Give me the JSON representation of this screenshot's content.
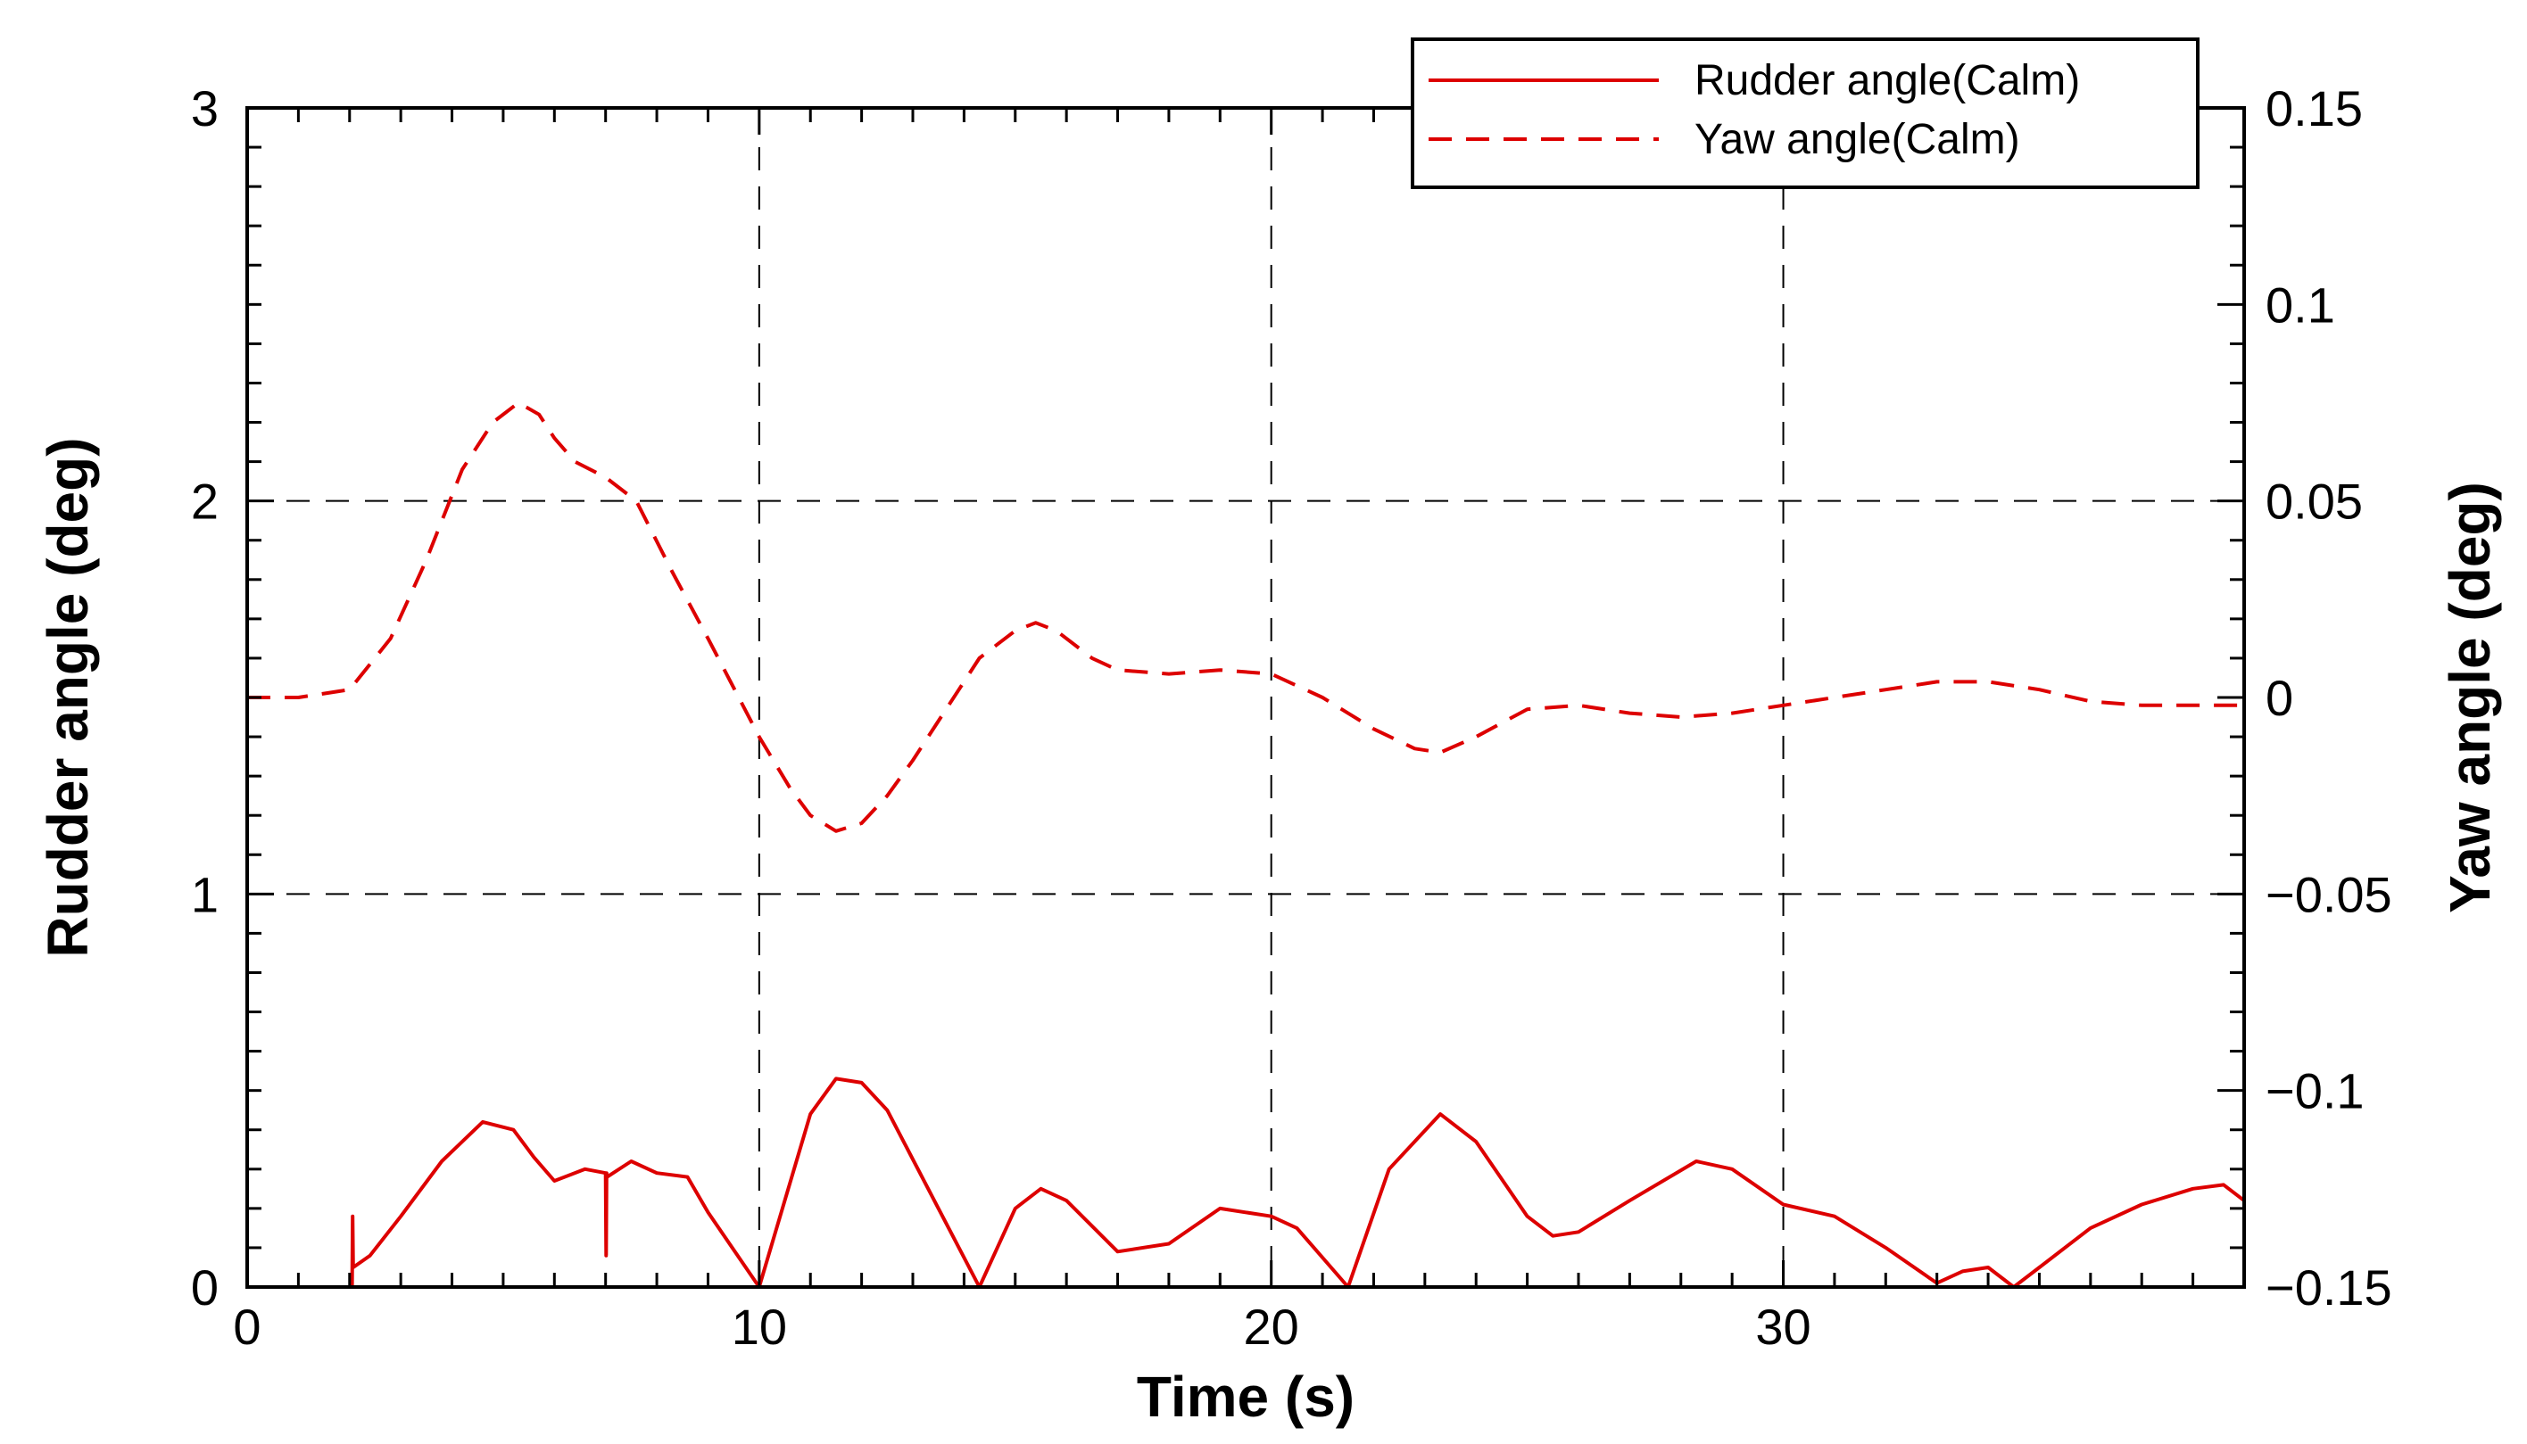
{
  "chart_data": {
    "type": "line",
    "xlabel": "Time (s)",
    "ylabel_left": "Rudder angle (deg)",
    "ylabel_right": "Yaw angle (deg)",
    "xlim": [
      0,
      39
    ],
    "ylim_left": [
      0,
      3
    ],
    "ylim_right": [
      -0.15,
      0.15
    ],
    "x_ticks": [
      0,
      10,
      20,
      30
    ],
    "x_tick_labels": [
      "0",
      "10",
      "20",
      "30"
    ],
    "y_left_ticks": [
      0,
      1,
      2,
      3
    ],
    "y_left_tick_labels": [
      "0",
      "1",
      "2",
      "3"
    ],
    "y_right_ticks": [
      -0.15,
      -0.1,
      -0.05,
      0,
      0.05,
      0.1,
      0.15
    ],
    "y_right_tick_labels": [
      "−0.15",
      "−0.1",
      "−0.05",
      "0",
      "0.05",
      "0.1",
      "0.15"
    ],
    "grid": "dashed at major ticks",
    "legend_position": "top-right",
    "colors": {
      "series": "#dd0000",
      "axes": "#000000",
      "grid": "#000000"
    },
    "series": [
      {
        "name": "Rudder angle(Calm)",
        "axis": "left",
        "style": "solid",
        "x": [
          0,
          2.05,
          2.06,
          2.07,
          2.4,
          3.0,
          3.8,
          4.6,
          5.2,
          5.6,
          6.0,
          6.6,
          7.0,
          7.01,
          7.02,
          7.03,
          7.5,
          8.0,
          8.6,
          9.0,
          10.0,
          11.0,
          11.5,
          12.0,
          12.5,
          13.5,
          14.3,
          15.0,
          15.5,
          16.0,
          17.0,
          18.0,
          19.0,
          20.0,
          20.5,
          21.5,
          22.3,
          23.3,
          24.0,
          25.0,
          25.5,
          26.0,
          27.0,
          28.3,
          29.0,
          30.0,
          31.0,
          32.0,
          33.0,
          33.5,
          34.0,
          34.5,
          35.0,
          36.0,
          37.0,
          38.0,
          38.6,
          39.0
        ],
        "y": [
          0,
          0,
          0.18,
          0.05,
          0.08,
          0.18,
          0.32,
          0.42,
          0.4,
          0.33,
          0.27,
          0.3,
          0.29,
          0.08,
          0.29,
          0.28,
          0.32,
          0.29,
          0.28,
          0.19,
          0,
          0.44,
          0.53,
          0.52,
          0.45,
          0.2,
          0,
          0.2,
          0.25,
          0.22,
          0.09,
          0.11,
          0.2,
          0.18,
          0.15,
          0,
          0.3,
          0.44,
          0.37,
          0.18,
          0.13,
          0.14,
          0.22,
          0.32,
          0.3,
          0.21,
          0.18,
          0.1,
          0.01,
          0.04,
          0.05,
          0.0,
          0.05,
          0.15,
          0.21,
          0.25,
          0.26,
          0.22
        ]
      },
      {
        "name": "Yaw angle(Calm)",
        "axis": "right",
        "style": "dashed",
        "x": [
          0,
          1.0,
          2.0,
          2.8,
          3.5,
          4.2,
          4.8,
          5.3,
          5.7,
          6.0,
          6.4,
          7.0,
          7.6,
          8.3,
          9.0,
          9.6,
          10.0,
          10.6,
          11.0,
          11.5,
          12.0,
          12.5,
          13.0,
          13.6,
          14.3,
          15.0,
          15.4,
          15.8,
          16.5,
          17.0,
          18.0,
          19.0,
          20.0,
          21.0,
          22.0,
          22.8,
          23.3,
          24.0,
          25.0,
          26.0,
          27.0,
          28.0,
          29.0,
          30.0,
          31.0,
          32.0,
          33.0,
          34.0,
          35.0,
          36.0,
          37.0,
          38.0,
          39.0
        ],
        "y": [
          0.0,
          0.0,
          0.002,
          0.015,
          0.035,
          0.058,
          0.07,
          0.075,
          0.072,
          0.066,
          0.06,
          0.056,
          0.05,
          0.032,
          0.015,
          0.0,
          -0.01,
          -0.023,
          -0.03,
          -0.034,
          -0.032,
          -0.025,
          -0.016,
          -0.004,
          0.01,
          0.017,
          0.019,
          0.017,
          0.01,
          0.007,
          0.006,
          0.007,
          0.006,
          0.0,
          -0.008,
          -0.013,
          -0.014,
          -0.01,
          -0.003,
          -0.002,
          -0.004,
          -0.005,
          -0.004,
          -0.002,
          0.0,
          0.002,
          0.004,
          0.004,
          0.002,
          -0.001,
          -0.002,
          -0.002,
          -0.002
        ]
      }
    ]
  }
}
